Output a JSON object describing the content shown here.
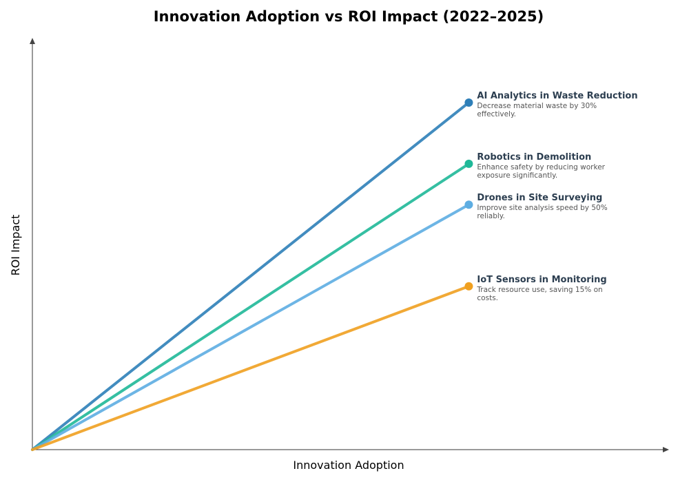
{
  "chart_data": {
    "type": "line",
    "title": "Innovation Adoption vs ROI Impact (2022–2025)",
    "xlabel": "Innovation Adoption",
    "ylabel": "ROI Impact",
    "grid": false,
    "xlim": [
      0,
      100
    ],
    "ylim": [
      0,
      100
    ],
    "series": [
      {
        "name": "AI Analytics in Waste Reduction",
        "description_lines": [
          "Decrease material waste by 30%",
          "effectively."
        ],
        "color": "#2e7fb8",
        "points": [
          [
            0,
            0
          ],
          [
            69,
            85
          ]
        ]
      },
      {
        "name": "Robotics in Demolition",
        "description_lines": [
          "Enhance safety by reducing worker",
          "exposure significantly."
        ],
        "color": "#1fb898",
        "points": [
          [
            0,
            0
          ],
          [
            69,
            70
          ]
        ]
      },
      {
        "name": "Drones in Site Surveying",
        "description_lines": [
          "Improve site analysis speed by 50%",
          "reliably."
        ],
        "color": "#5dade2",
        "points": [
          [
            0,
            0
          ],
          [
            69,
            60
          ]
        ]
      },
      {
        "name": "IoT Sensors in Monitoring",
        "description_lines": [
          "Track resource use, saving 15% on",
          "costs."
        ],
        "color": "#f0a020",
        "points": [
          [
            0,
            0
          ],
          [
            69,
            40
          ]
        ]
      }
    ]
  }
}
